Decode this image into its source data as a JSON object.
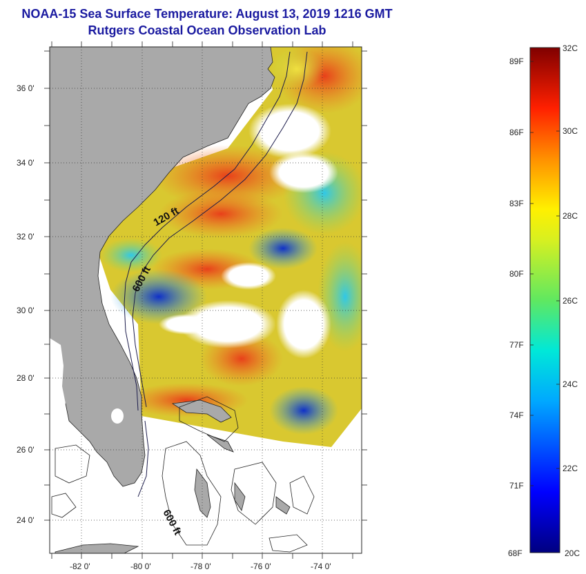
{
  "title": {
    "line1": "NOAA-15 Sea Surface Temperature:  August 13, 2019 1216 GMT",
    "line2": "Rutgers Coastal Ocean Observation Lab"
  },
  "map": {
    "lat_labels": [
      "36 0'",
      "34 0'",
      "32 0'",
      "30 0'",
      "28 0'",
      "26 0'",
      "24 0'"
    ],
    "lon_labels": [
      "-82 0'",
      "-80 0'",
      "-78 0'",
      "-76 0'",
      "-74 0'"
    ],
    "contour_labels": [
      "120 ft",
      "600 ft",
      "600 ft"
    ]
  },
  "colorbar": {
    "f_labels": [
      "89F",
      "86F",
      "83F",
      "80F",
      "77F",
      "74F",
      "71F",
      "68F"
    ],
    "c_labels": [
      "32C",
      "30C",
      "28C",
      "26C",
      "24C",
      "22C",
      "20C"
    ],
    "colors": {
      "land": "#a9a9a9",
      "title": "#1a1aa0"
    }
  }
}
